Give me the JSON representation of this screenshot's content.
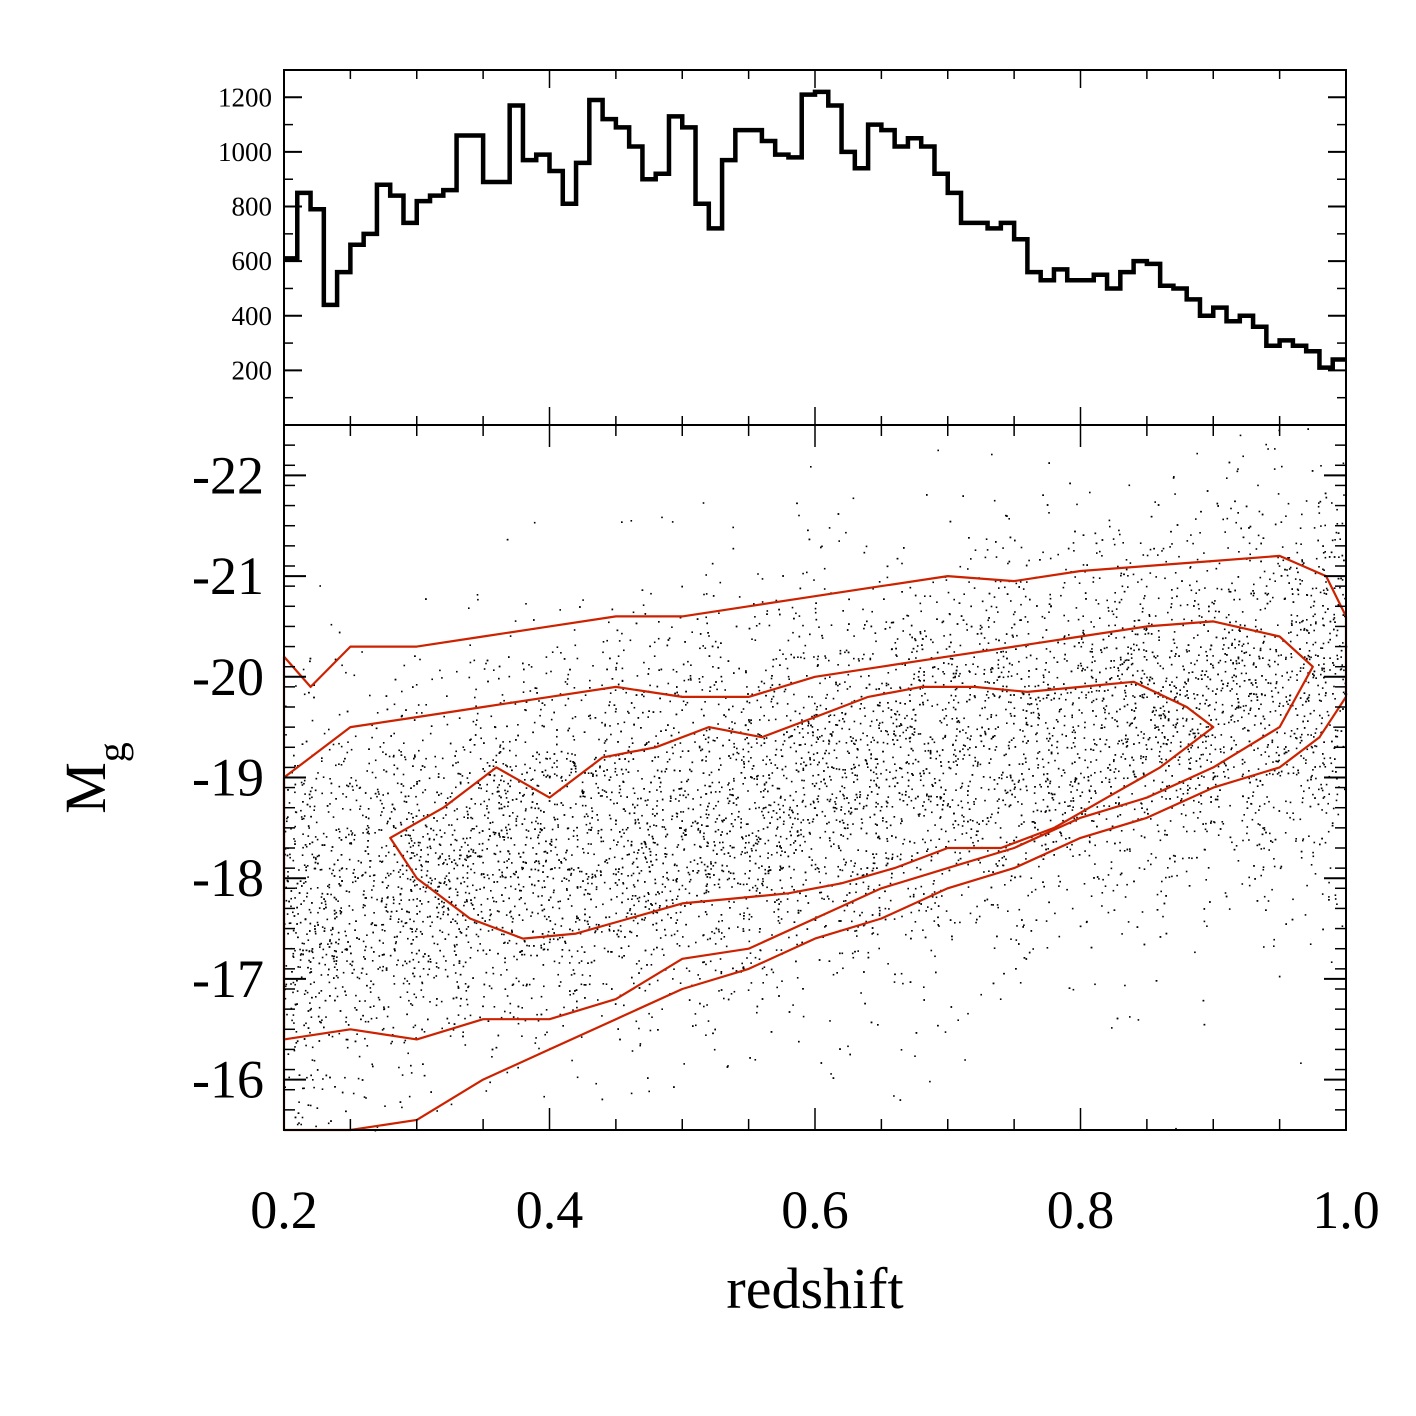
{
  "chart_data": [
    {
      "type": "bar",
      "subtype": "histogram-step",
      "xlim": [
        0.2,
        1.0
      ],
      "ylim": [
        0,
        1300
      ],
      "yticks": [
        200,
        400,
        600,
        800,
        1000,
        1200
      ],
      "ytick_labels": [
        "200",
        "400",
        "600",
        "800",
        "1000",
        "1200"
      ],
      "bin_edges": [
        0.2,
        0.21,
        0.22,
        0.23,
        0.24,
        0.25,
        0.26,
        0.27,
        0.28,
        0.29,
        0.3,
        0.31,
        0.32,
        0.33,
        0.34,
        0.35,
        0.36,
        0.37,
        0.38,
        0.39,
        0.4,
        0.41,
        0.42,
        0.43,
        0.44,
        0.45,
        0.46,
        0.47,
        0.48,
        0.49,
        0.5,
        0.51,
        0.52,
        0.53,
        0.54,
        0.55,
        0.56,
        0.57,
        0.58,
        0.59,
        0.6,
        0.61,
        0.62,
        0.63,
        0.64,
        0.65,
        0.66,
        0.67,
        0.68,
        0.69,
        0.7,
        0.71,
        0.72,
        0.73,
        0.74,
        0.75,
        0.76,
        0.77,
        0.78,
        0.79,
        0.8,
        0.81,
        0.82,
        0.83,
        0.84,
        0.85,
        0.86,
        0.87,
        0.88,
        0.89,
        0.9,
        0.91,
        0.92,
        0.93,
        0.94,
        0.95,
        0.96,
        0.97,
        0.98,
        0.99,
        1.0
      ],
      "counts": [
        610,
        850,
        790,
        440,
        560,
        660,
        700,
        880,
        840,
        740,
        820,
        840,
        860,
        1060,
        1060,
        890,
        890,
        1170,
        970,
        990,
        930,
        810,
        960,
        1190,
        1120,
        1090,
        1020,
        900,
        920,
        1130,
        1090,
        810,
        720,
        970,
        1080,
        1080,
        1040,
        990,
        980,
        1210,
        1220,
        1170,
        1000,
        940,
        1100,
        1080,
        1020,
        1050,
        1020,
        920,
        850,
        740,
        740,
        720,
        740,
        680,
        560,
        530,
        570,
        530,
        530,
        550,
        500,
        560,
        600,
        590,
        510,
        500,
        460,
        400,
        430,
        380,
        400,
        360,
        290,
        310,
        290,
        270,
        210,
        240
      ]
    },
    {
      "type": "scatter",
      "xlabel": "redshift",
      "ylabel": "M",
      "ylabel_subscript": "g",
      "xlim": [
        0.2,
        1.0
      ],
      "ylim": [
        -15.5,
        -22.5
      ],
      "xticks": [
        0.2,
        0.4,
        0.6,
        0.8,
        1.0
      ],
      "xtick_labels": [
        "0.2",
        "0.4",
        "0.6",
        "0.8",
        "1.0"
      ],
      "yticks": [
        -16,
        -17,
        -18,
        -19,
        -20,
        -21,
        -22
      ],
      "ytick_labels": [
        "-16",
        "-17",
        "-18",
        "-19",
        "-20",
        "-21",
        "-22"
      ],
      "points_trend": {
        "z": [
          0.2,
          0.4,
          0.6,
          0.8,
          1.0
        ],
        "mean_Mg": [
          -17.6,
          -18.3,
          -18.9,
          -19.5,
          -20.0
        ],
        "scatter_sigma": 1.0
      },
      "contours": [
        {
          "level": "outer",
          "color": "#cc2200",
          "z": [
            0.2,
            0.22,
            0.25,
            0.3,
            0.35,
            0.4,
            0.45,
            0.5,
            0.55,
            0.6,
            0.65,
            0.7,
            0.75,
            0.8,
            0.85,
            0.9,
            0.95,
            0.985,
            1.0,
            1.0,
            0.98,
            0.95,
            0.9,
            0.85,
            0.8,
            0.75,
            0.7,
            0.65,
            0.6,
            0.55,
            0.5,
            0.45,
            0.4,
            0.35,
            0.3,
            0.25,
            0.2
          ],
          "Mg": [
            -20.2,
            -19.9,
            -20.3,
            -20.3,
            -20.4,
            -20.5,
            -20.6,
            -20.6,
            -20.7,
            -20.8,
            -20.9,
            -21.0,
            -20.95,
            -21.05,
            -21.1,
            -21.15,
            -21.2,
            -21.0,
            -20.6,
            -19.8,
            -19.4,
            -19.1,
            -18.9,
            -18.6,
            -18.4,
            -18.1,
            -17.9,
            -17.6,
            -17.4,
            -17.1,
            -16.9,
            -16.6,
            -16.3,
            -16.0,
            -15.6,
            -15.5,
            -15.5
          ]
        },
        {
          "level": "middle",
          "color": "#cc2200",
          "z": [
            0.2,
            0.25,
            0.3,
            0.35,
            0.4,
            0.45,
            0.5,
            0.55,
            0.6,
            0.65,
            0.7,
            0.75,
            0.8,
            0.85,
            0.9,
            0.95,
            0.975,
            0.95,
            0.9,
            0.85,
            0.8,
            0.75,
            0.7,
            0.65,
            0.6,
            0.55,
            0.5,
            0.45,
            0.4,
            0.35,
            0.3,
            0.25,
            0.2
          ],
          "Mg": [
            -19.0,
            -19.5,
            -19.6,
            -19.7,
            -19.8,
            -19.9,
            -19.8,
            -19.8,
            -20.0,
            -20.1,
            -20.2,
            -20.3,
            -20.4,
            -20.5,
            -20.55,
            -20.4,
            -20.1,
            -19.5,
            -19.1,
            -18.8,
            -18.6,
            -18.3,
            -18.1,
            -17.9,
            -17.6,
            -17.3,
            -17.2,
            -16.8,
            -16.6,
            -16.6,
            -16.4,
            -16.5,
            -16.4
          ]
        },
        {
          "level": "inner",
          "color": "#cc2200",
          "z": [
            0.28,
            0.32,
            0.36,
            0.4,
            0.44,
            0.48,
            0.52,
            0.56,
            0.6,
            0.64,
            0.68,
            0.72,
            0.76,
            0.8,
            0.84,
            0.88,
            0.9,
            0.86,
            0.82,
            0.78,
            0.74,
            0.7,
            0.66,
            0.62,
            0.58,
            0.54,
            0.5,
            0.46,
            0.42,
            0.38,
            0.34,
            0.3,
            0.28
          ],
          "Mg": [
            -18.4,
            -18.7,
            -19.1,
            -18.8,
            -19.2,
            -19.3,
            -19.5,
            -19.4,
            -19.6,
            -19.8,
            -19.9,
            -19.9,
            -19.85,
            -19.9,
            -19.95,
            -19.7,
            -19.5,
            -19.1,
            -18.8,
            -18.5,
            -18.3,
            -18.3,
            -18.1,
            -17.95,
            -17.85,
            -17.8,
            -17.75,
            -17.6,
            -17.45,
            -17.4,
            -17.6,
            -18.0,
            -18.4
          ]
        }
      ]
    }
  ]
}
